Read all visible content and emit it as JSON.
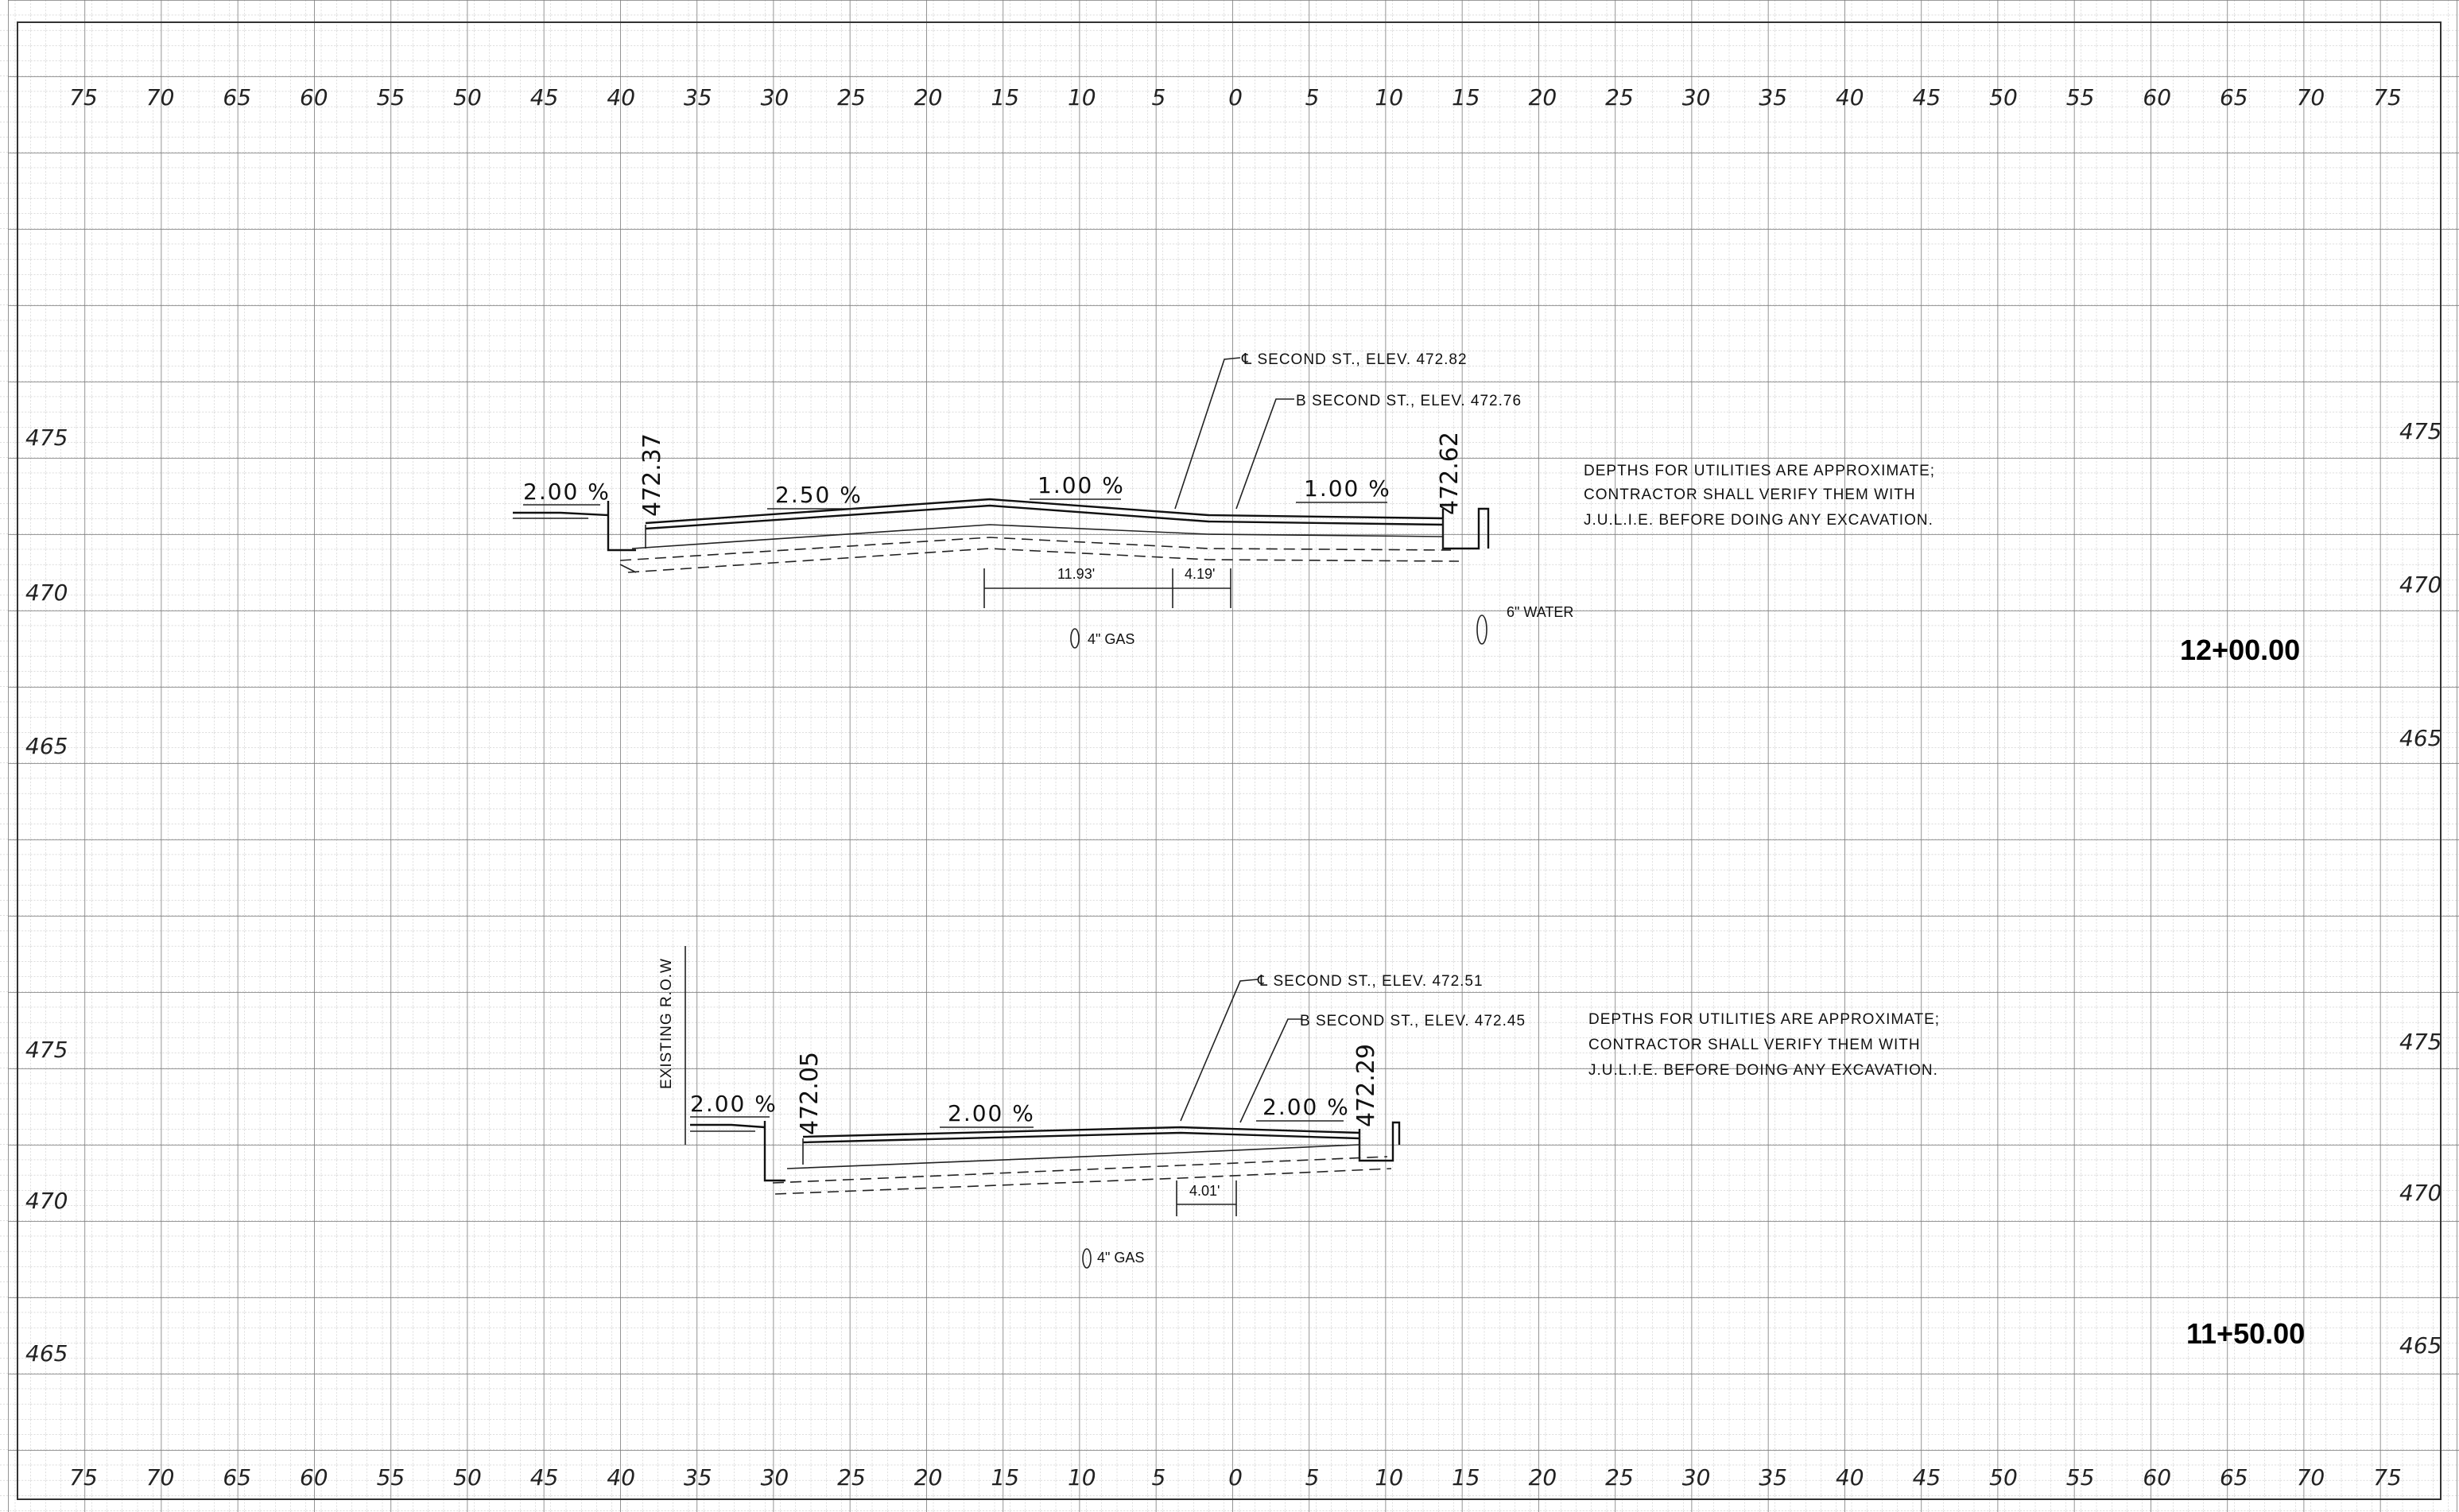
{
  "offset_labels": [
    "75",
    "70",
    "65",
    "60",
    "55",
    "50",
    "45",
    "40",
    "35",
    "30",
    "25",
    "20",
    "15",
    "10",
    "5",
    "0",
    "5",
    "10",
    "15",
    "20",
    "25",
    "30",
    "35",
    "40",
    "45",
    "50",
    "55",
    "60",
    "65",
    "70",
    "75"
  ],
  "sections": [
    {
      "station": "12+00.00",
      "elevation_labels": [
        "475",
        "470",
        "465"
      ],
      "centerline_label": "℄ SECOND ST., ELEV. 472.82",
      "baseline_label": "B SECOND ST., ELEV. 472.76",
      "left_edge_elev": "472.37",
      "right_edge_elev": "472.62",
      "slopes": [
        "2.00 %",
        "2.50 %",
        "1.00 %",
        "1.00 %"
      ],
      "dims": [
        "11.93'",
        "4.19'"
      ],
      "utilities": [
        "4\" GAS",
        "6\" WATER"
      ],
      "note": [
        "DEPTHS FOR UTILITIES ARE APPROXIMATE;",
        "CONTRACTOR SHALL VERIFY THEM WITH",
        "J.U.L.I.E. BEFORE DOING ANY EXCAVATION."
      ]
    },
    {
      "station": "11+50.00",
      "elevation_labels": [
        "475",
        "470",
        "465"
      ],
      "centerline_label": "℄ SECOND ST., ELEV. 472.51",
      "baseline_label": "B SECOND ST., ELEV. 472.45",
      "left_edge_elev": "472.05",
      "right_edge_elev": "472.29",
      "row_label": "EXISTING R.O.W",
      "slopes": [
        "2.00 %",
        "2.00 %",
        "2.00 %"
      ],
      "dims": [
        "4.01'"
      ],
      "utilities": [
        "4\" GAS"
      ],
      "note": [
        "DEPTHS FOR UTILITIES ARE APPROXIMATE;",
        "CONTRACTOR SHALL VERIFY THEM WITH",
        "J.U.L.I.E. BEFORE DOING ANY EXCAVATION."
      ]
    }
  ]
}
